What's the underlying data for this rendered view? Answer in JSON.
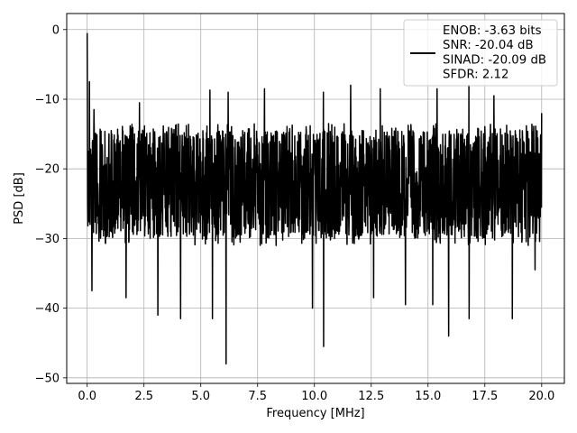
{
  "chart_data": {
    "type": "line",
    "title": "",
    "xlabel": "Frequency [MHz]",
    "ylabel": "PSD [dB]",
    "xlim": [
      -0.9,
      21.0
    ],
    "ylim": [
      -50.8,
      2.3
    ],
    "xticks": [
      0.0,
      2.5,
      5.0,
      7.5,
      10.0,
      12.5,
      15.0,
      17.5,
      20.0
    ],
    "xtick_labels": [
      "0.0",
      "2.5",
      "5.0",
      "7.5",
      "10.0",
      "12.5",
      "15.0",
      "17.5",
      "20.0"
    ],
    "yticks": [
      0,
      -10,
      -20,
      -30,
      -40,
      -50
    ],
    "ytick_labels": [
      "0",
      "−10",
      "−20",
      "−30",
      "−40",
      "−50"
    ],
    "grid": true,
    "legend_position": "top-right",
    "series": [
      {
        "name": "ENOB: -3.63 bits\nSNR: -20.04 dB\nSINAD: -20.09 dB\nSFDR: 2.12",
        "color": "#000000",
        "x_start": 0.0,
        "x_end": 20.0,
        "peak_value": -0.5,
        "typical_max": -13.5,
        "typical_min": -31.0,
        "notable_max": [
          {
            "x": 0.0,
            "y": -0.5
          },
          {
            "x": 0.1,
            "y": -7.5
          },
          {
            "x": 0.3,
            "y": -11.5
          },
          {
            "x": 2.3,
            "y": -10.5
          },
          {
            "x": 5.4,
            "y": -8.7
          },
          {
            "x": 6.2,
            "y": -9.0
          },
          {
            "x": 7.8,
            "y": -8.5
          },
          {
            "x": 10.4,
            "y": -9.0
          },
          {
            "x": 11.6,
            "y": -8.0
          },
          {
            "x": 12.9,
            "y": -8.5
          },
          {
            "x": 15.4,
            "y": -8.5
          },
          {
            "x": 16.8,
            "y": -8.0
          },
          {
            "x": 17.9,
            "y": -9.5
          },
          {
            "x": 20.0,
            "y": -12.0
          }
        ],
        "notable_min": [
          {
            "x": 0.2,
            "y": -37.5
          },
          {
            "x": 1.7,
            "y": -38.5
          },
          {
            "x": 3.1,
            "y": -41.0
          },
          {
            "x": 4.1,
            "y": -41.5
          },
          {
            "x": 5.5,
            "y": -41.5
          },
          {
            "x": 6.1,
            "y": -48.0
          },
          {
            "x": 9.9,
            "y": -40.0
          },
          {
            "x": 10.4,
            "y": -45.5
          },
          {
            "x": 12.6,
            "y": -38.5
          },
          {
            "x": 14.0,
            "y": -39.5
          },
          {
            "x": 15.2,
            "y": -39.5
          },
          {
            "x": 15.9,
            "y": -44.0
          },
          {
            "x": 16.8,
            "y": -41.5
          },
          {
            "x": 18.7,
            "y": -41.5
          },
          {
            "x": 19.7,
            "y": -34.5
          }
        ]
      }
    ]
  }
}
